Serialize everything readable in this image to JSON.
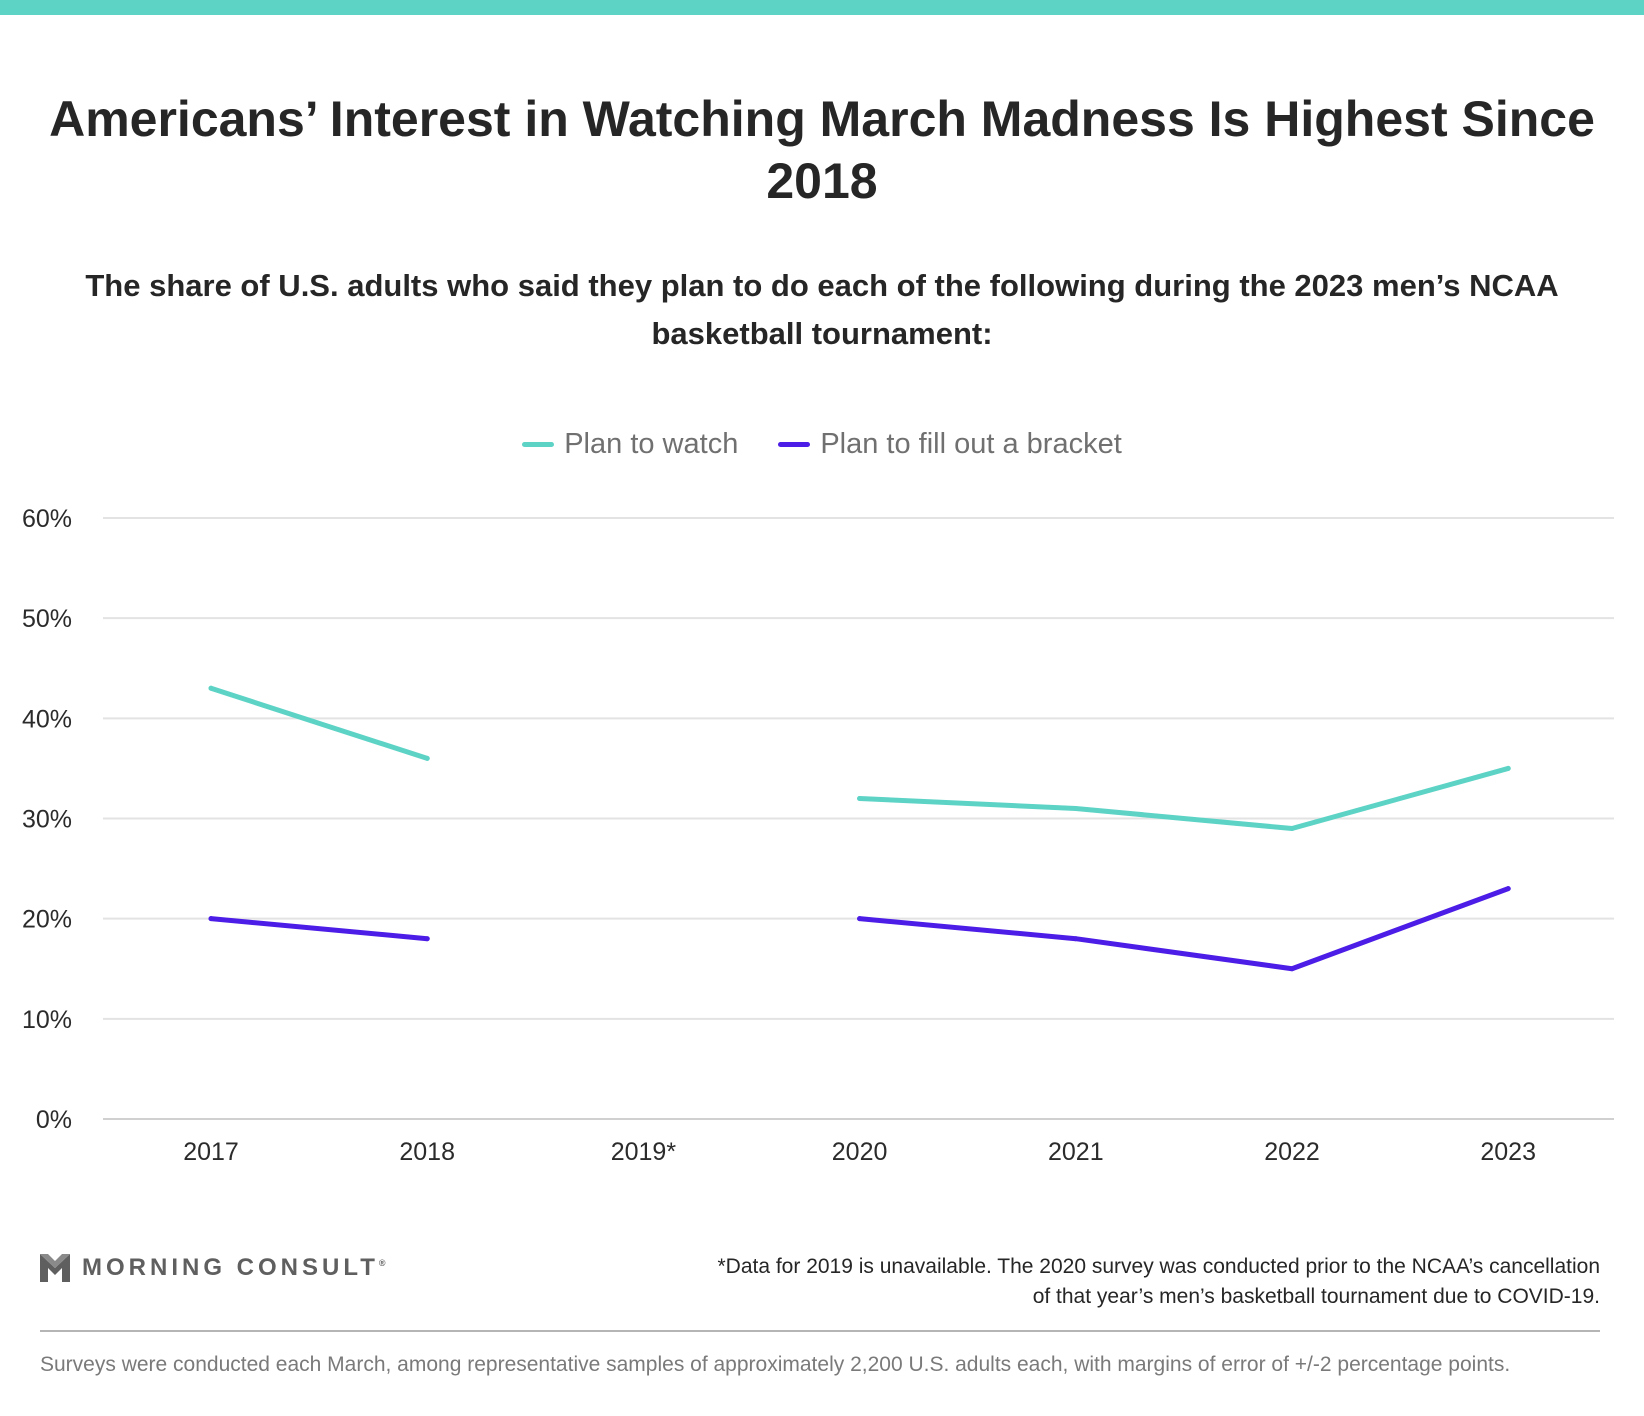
{
  "title": "Americans’ Interest in Watching March Madness Is Highest Since 2018",
  "subtitle": "The share of U.S. adults who said they plan to do each of the following during the 2023 men’s NCAA basketball tournament:",
  "legend": {
    "items": [
      {
        "label": "Plan to watch",
        "color": "#5dd3c6"
      },
      {
        "label": "Plan to fill out a bracket",
        "color": "#4c1de6"
      }
    ]
  },
  "chart_data": {
    "type": "line",
    "title": "Americans’ Interest in Watching March Madness Is Highest Since 2018",
    "subtitle": "The share of U.S. adults who said they plan to do each of the following during the 2023 men’s NCAA basketball tournament:",
    "categories": [
      "2017",
      "2018",
      "2019*",
      "2020",
      "2021",
      "2022",
      "2023"
    ],
    "series": [
      {
        "name": "Plan to watch",
        "color": "#5dd3c6",
        "values": [
          43,
          36,
          null,
          32,
          31,
          29,
          35
        ]
      },
      {
        "name": "Plan to fill out a bracket",
        "color": "#4c1de6",
        "values": [
          20,
          18,
          null,
          20,
          18,
          15,
          23
        ]
      }
    ],
    "ylim": [
      0,
      60
    ],
    "yticks": [
      0,
      10,
      20,
      30,
      40,
      50,
      60
    ],
    "ytick_labels": [
      "0%",
      "10%",
      "20%",
      "30%",
      "40%",
      "50%",
      "60%"
    ],
    "grid": true,
    "legend_position": "top-center",
    "gridline_color": "#e3e3e3"
  },
  "branding": {
    "logo_text": "MORNING CONSULT",
    "logo_icon": "morning-consult-m-icon"
  },
  "footnote": "*Data for 2019 is unavailable. The 2020 survey was conducted prior to the NCAA’s cancellation of that year’s men’s basketball tournament due to COVID-19.",
  "source_note": "Surveys were conducted each March, among representative samples of approximately 2,200 U.S. adults each, with margins of error of +/-2 percentage points.",
  "colors": {
    "accent_bar": "#5dd3c6"
  }
}
